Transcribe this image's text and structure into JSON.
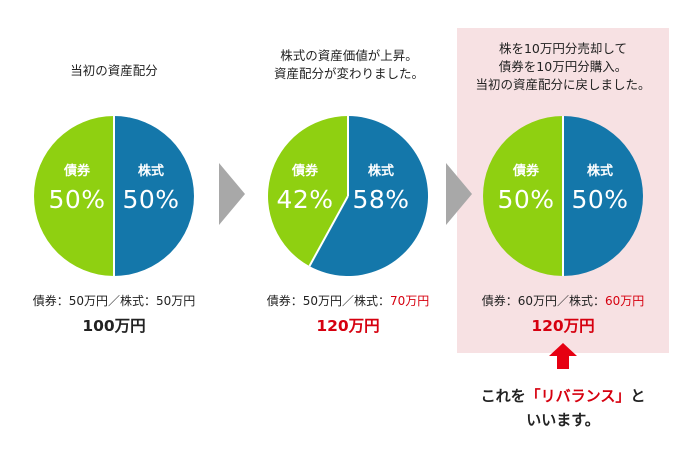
{
  "colors": {
    "bond": "#8fd011",
    "stock": "#1477aa",
    "highlight_bg": "#f7e1e3",
    "accent_red": "#d6000f",
    "arrow_gray": "#a8a8a8"
  },
  "panels": [
    {
      "caption": [
        "当初の資産配分"
      ],
      "bond_label": "債券",
      "stock_label": "株式",
      "bond_pct_text": "50%",
      "stock_pct_text": "50%",
      "bond_share": 0.5,
      "stock_share": 0.5,
      "breakdown_bond": "債券：50万円",
      "breakdown_sep": "／",
      "breakdown_stock_label": "株式：",
      "breakdown_stock_value": "50万円",
      "total": "100万円"
    },
    {
      "caption": [
        "株式の資産価値が上昇。",
        "資産配分が変わりました。"
      ],
      "bond_label": "債券",
      "stock_label": "株式",
      "bond_pct_text": "42%",
      "stock_pct_text": "58%",
      "bond_share": 0.42,
      "stock_share": 0.58,
      "breakdown_bond": "債券：50万円",
      "breakdown_sep": "／",
      "breakdown_stock_label": "株式：",
      "breakdown_stock_value": "70万円",
      "total": "120万円"
    },
    {
      "caption": [
        "株を10万円分売却して",
        "債券を10万円分購入。",
        "当初の資産配分に戻しました。"
      ],
      "bond_label": "債券",
      "stock_label": "株式",
      "bond_pct_text": "50%",
      "stock_pct_text": "50%",
      "bond_share": 0.5,
      "stock_share": 0.5,
      "breakdown_bond": "債券：60万円",
      "breakdown_sep": "／",
      "breakdown_stock_label": "株式：",
      "breakdown_stock_value": "60万円",
      "total": "120万円"
    }
  ],
  "note": {
    "prefix": "これを",
    "term": "「リバランス」",
    "suffix": "と",
    "line2": "いいます。"
  }
}
